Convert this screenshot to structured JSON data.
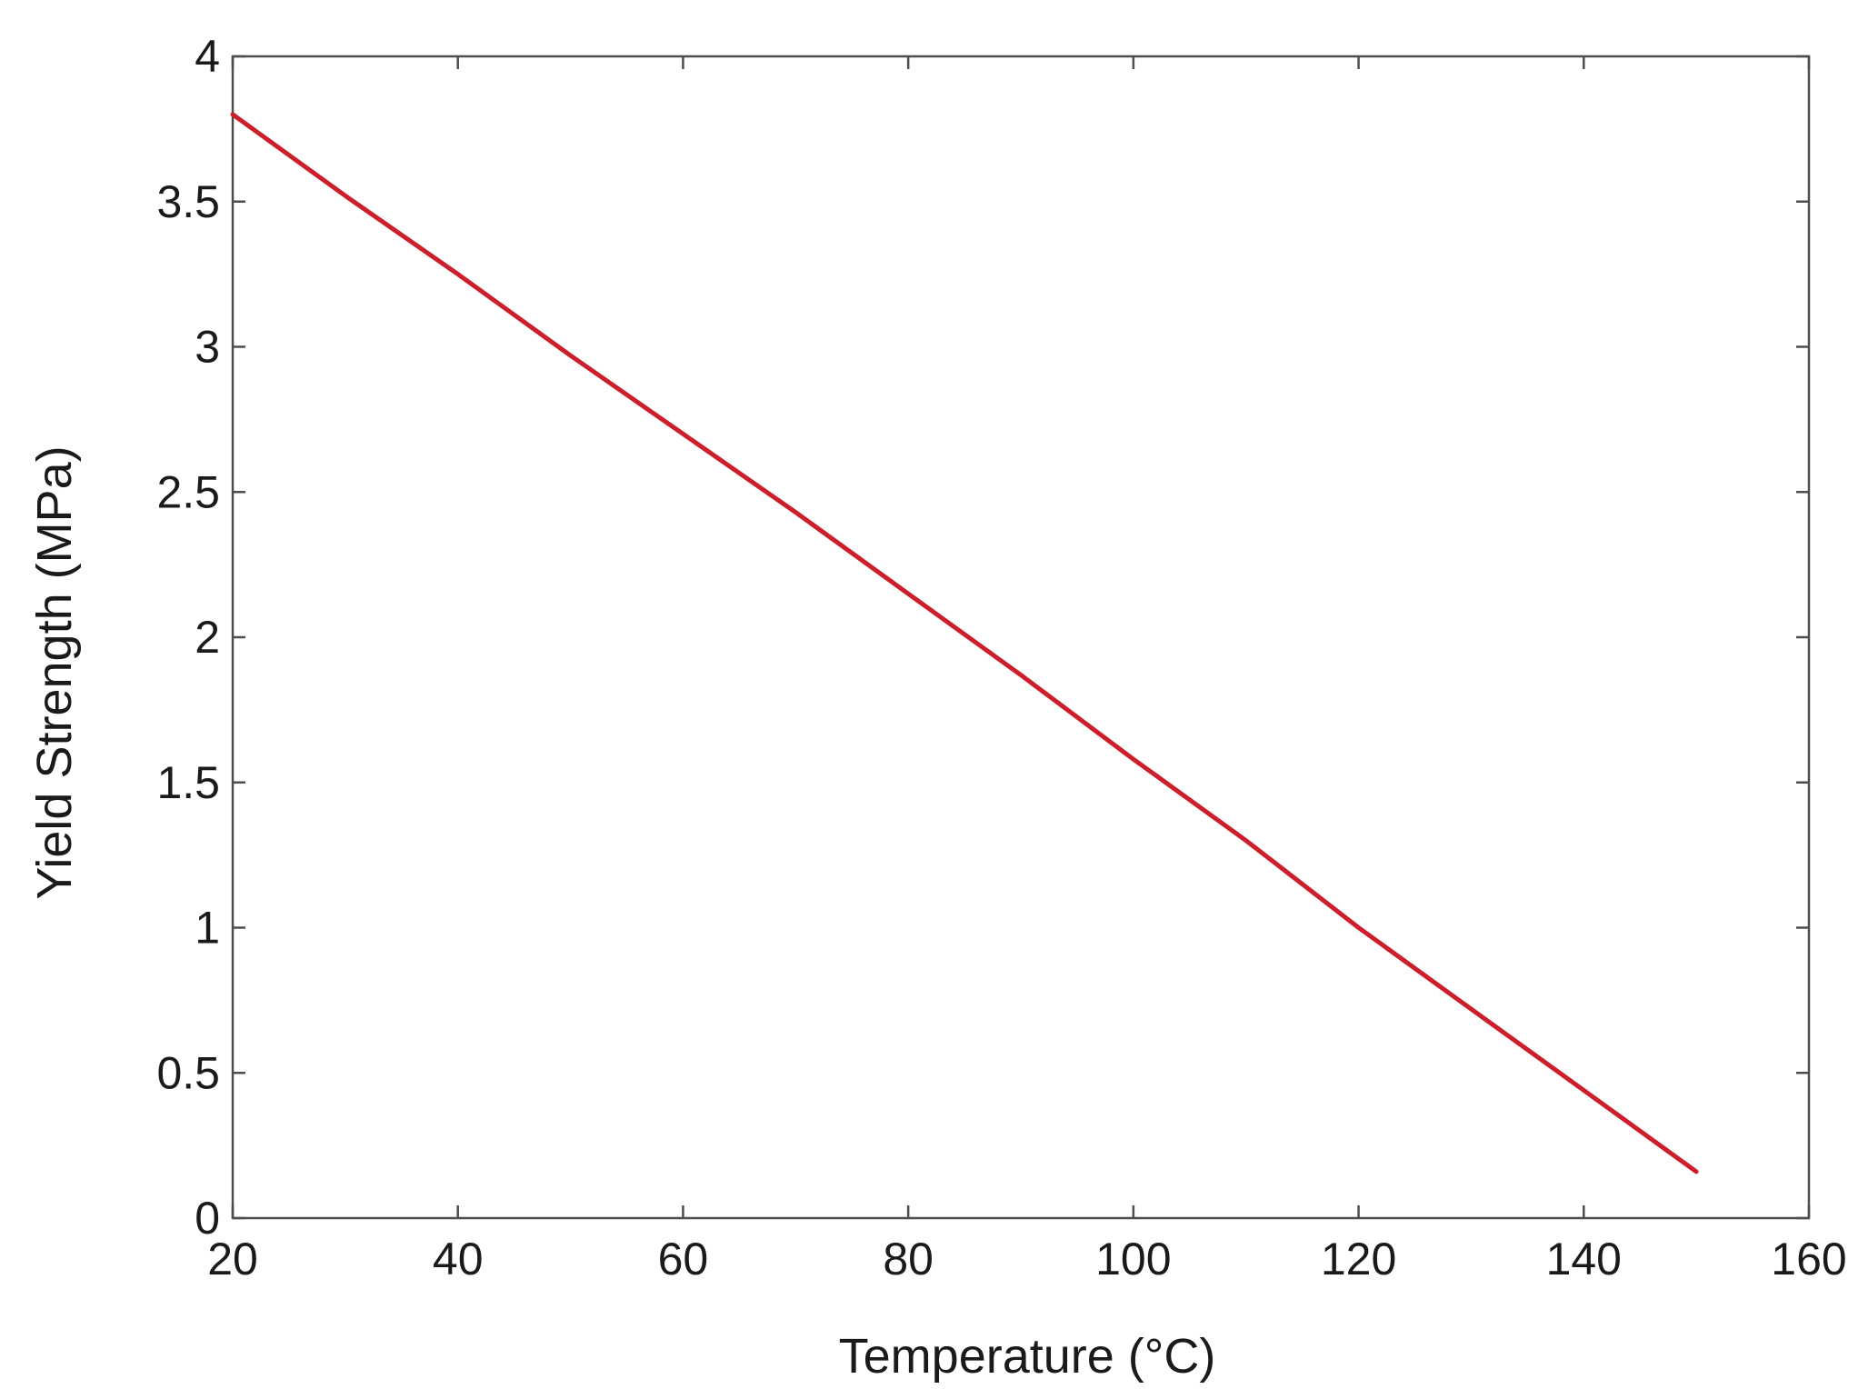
{
  "chart_data": {
    "type": "line",
    "title": "",
    "xlabel": "Temperature (°C)",
    "ylabel": "Yield Strength (MPa)",
    "xlim": [
      20,
      160
    ],
    "ylim": [
      0,
      4
    ],
    "xticks": [
      20,
      40,
      60,
      80,
      100,
      120,
      140,
      160
    ],
    "yticks": [
      0,
      0.5,
      1,
      1.5,
      2,
      2.5,
      3,
      3.5,
      4
    ],
    "xtick_labels": [
      "20",
      "40",
      "60",
      "80",
      "100",
      "120",
      "140",
      "160"
    ],
    "ytick_labels": [
      "0",
      "0.5",
      "1",
      "1.5",
      "2",
      "2.5",
      "3",
      "3.5",
      "4"
    ],
    "grid": false,
    "legend": "none",
    "colors": {
      "line": "#cc1f2b",
      "axes": "#4d4d4d"
    },
    "series": [
      {
        "x": [
          20,
          30,
          40,
          50,
          60,
          70,
          80,
          90,
          100,
          110,
          120,
          130,
          140,
          150
        ],
        "y": [
          3.8,
          3.52,
          3.25,
          2.97,
          2.7,
          2.43,
          2.15,
          1.87,
          1.58,
          1.3,
          1.0,
          0.72,
          0.44,
          0.16
        ]
      }
    ]
  }
}
